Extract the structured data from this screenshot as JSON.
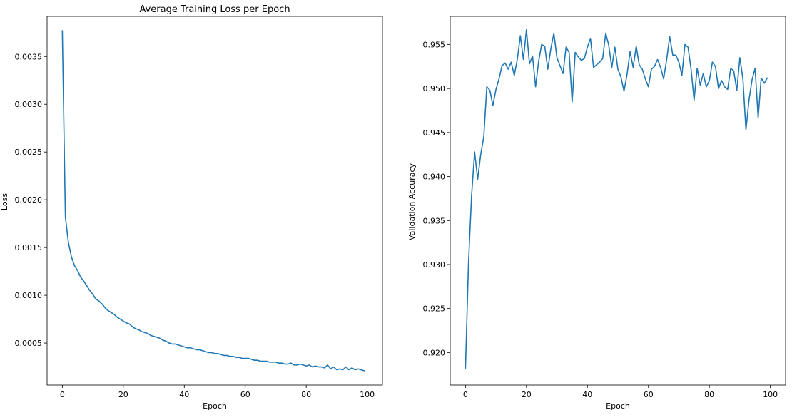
{
  "chart_data": [
    {
      "type": "line",
      "title": "Average Training Loss per Epoch",
      "xlabel": "Epoch",
      "ylabel": "Loss",
      "xlim": [
        -5,
        105
      ],
      "ylim": [
        6e-05,
        0.00392
      ],
      "xticks": [
        0,
        20,
        40,
        60,
        80,
        100
      ],
      "yticks": [
        0.0005,
        0.001,
        0.0015,
        0.002,
        0.0025,
        0.003,
        0.0035
      ],
      "ytick_labels": [
        "0.0005",
        "0.0010",
        "0.0015",
        "0.0020",
        "0.0025",
        "0.0030",
        "0.0035"
      ],
      "grid": false,
      "line_color": "#1f77b4",
      "series": [
        {
          "values": [
            0.00377,
            0.00182,
            0.00155,
            0.0014,
            0.00131,
            0.00126,
            0.00119,
            0.00115,
            0.0011,
            0.00105,
            0.00101,
            0.00096,
            0.00094,
            0.00091,
            0.00087,
            0.00084,
            0.00082,
            0.0008,
            0.00077,
            0.00075,
            0.00073,
            0.00071,
            0.0007,
            0.00067,
            0.00065,
            0.00064,
            0.00062,
            0.00061,
            0.0006,
            0.00058,
            0.00057,
            0.00056,
            0.00055,
            0.00053,
            0.00052,
            0.0005,
            0.00049,
            0.00049,
            0.00048,
            0.00047,
            0.00046,
            0.00045,
            0.00045,
            0.00044,
            0.00043,
            0.00043,
            0.00042,
            0.00041,
            0.0004,
            0.0004,
            0.00039,
            0.00039,
            0.00038,
            0.00037,
            0.00037,
            0.00036,
            0.00036,
            0.00035,
            0.00035,
            0.00034,
            0.00034,
            0.00034,
            0.00033,
            0.00032,
            0.00032,
            0.00031,
            0.00031,
            0.00031,
            0.0003,
            0.0003,
            0.0003,
            0.00029,
            0.00029,
            0.00028,
            0.00028,
            0.00029,
            0.00027,
            0.00027,
            0.00028,
            0.00027,
            0.00026,
            0.00027,
            0.00025,
            0.00026,
            0.00025,
            0.00025,
            0.00024,
            0.00027,
            0.00023,
            0.00025,
            0.00022,
            0.00023,
            0.00022,
            0.00025,
            0.00022,
            0.00024,
            0.00022,
            0.00023,
            0.00022,
            0.00021
          ]
        }
      ]
    },
    {
      "type": "line",
      "title": "",
      "xlabel": "Epoch",
      "ylabel": "Validation Accuracy",
      "xlim": [
        -5,
        105
      ],
      "ylim": [
        0.9163,
        0.9582
      ],
      "xticks": [
        0,
        20,
        40,
        60,
        80,
        100
      ],
      "yticks": [
        0.92,
        0.925,
        0.93,
        0.935,
        0.94,
        0.945,
        0.95,
        0.955
      ],
      "ytick_labels": [
        "0.920",
        "0.925",
        "0.930",
        "0.935",
        "0.940",
        "0.945",
        "0.950",
        "0.955"
      ],
      "grid": false,
      "line_color": "#1f77b4",
      "series": [
        {
          "values": [
            0.9182,
            0.9302,
            0.9378,
            0.9428,
            0.9397,
            0.9425,
            0.9445,
            0.9502,
            0.9498,
            0.9481,
            0.9499,
            0.9511,
            0.9526,
            0.9529,
            0.9522,
            0.953,
            0.9515,
            0.9533,
            0.956,
            0.9533,
            0.9567,
            0.9528,
            0.9537,
            0.9502,
            0.9531,
            0.955,
            0.9548,
            0.9522,
            0.9545,
            0.9563,
            0.9535,
            0.9526,
            0.9517,
            0.9547,
            0.9541,
            0.9485,
            0.9541,
            0.9536,
            0.9532,
            0.9534,
            0.9547,
            0.9557,
            0.9524,
            0.9527,
            0.953,
            0.9534,
            0.9563,
            0.9549,
            0.9524,
            0.9547,
            0.9522,
            0.9513,
            0.9497,
            0.9516,
            0.9542,
            0.9524,
            0.9548,
            0.9527,
            0.9522,
            0.9511,
            0.9502,
            0.9522,
            0.9525,
            0.9533,
            0.9524,
            0.9511,
            0.9533,
            0.9559,
            0.9538,
            0.9538,
            0.953,
            0.9515,
            0.955,
            0.9547,
            0.9522,
            0.9487,
            0.9523,
            0.9504,
            0.9517,
            0.9502,
            0.9509,
            0.953,
            0.9525,
            0.95,
            0.9509,
            0.9502,
            0.9499,
            0.9523,
            0.952,
            0.9498,
            0.9535,
            0.9511,
            0.9453,
            0.9487,
            0.951,
            0.9523,
            0.9467,
            0.9512,
            0.9506,
            0.9512
          ]
        }
      ]
    }
  ]
}
